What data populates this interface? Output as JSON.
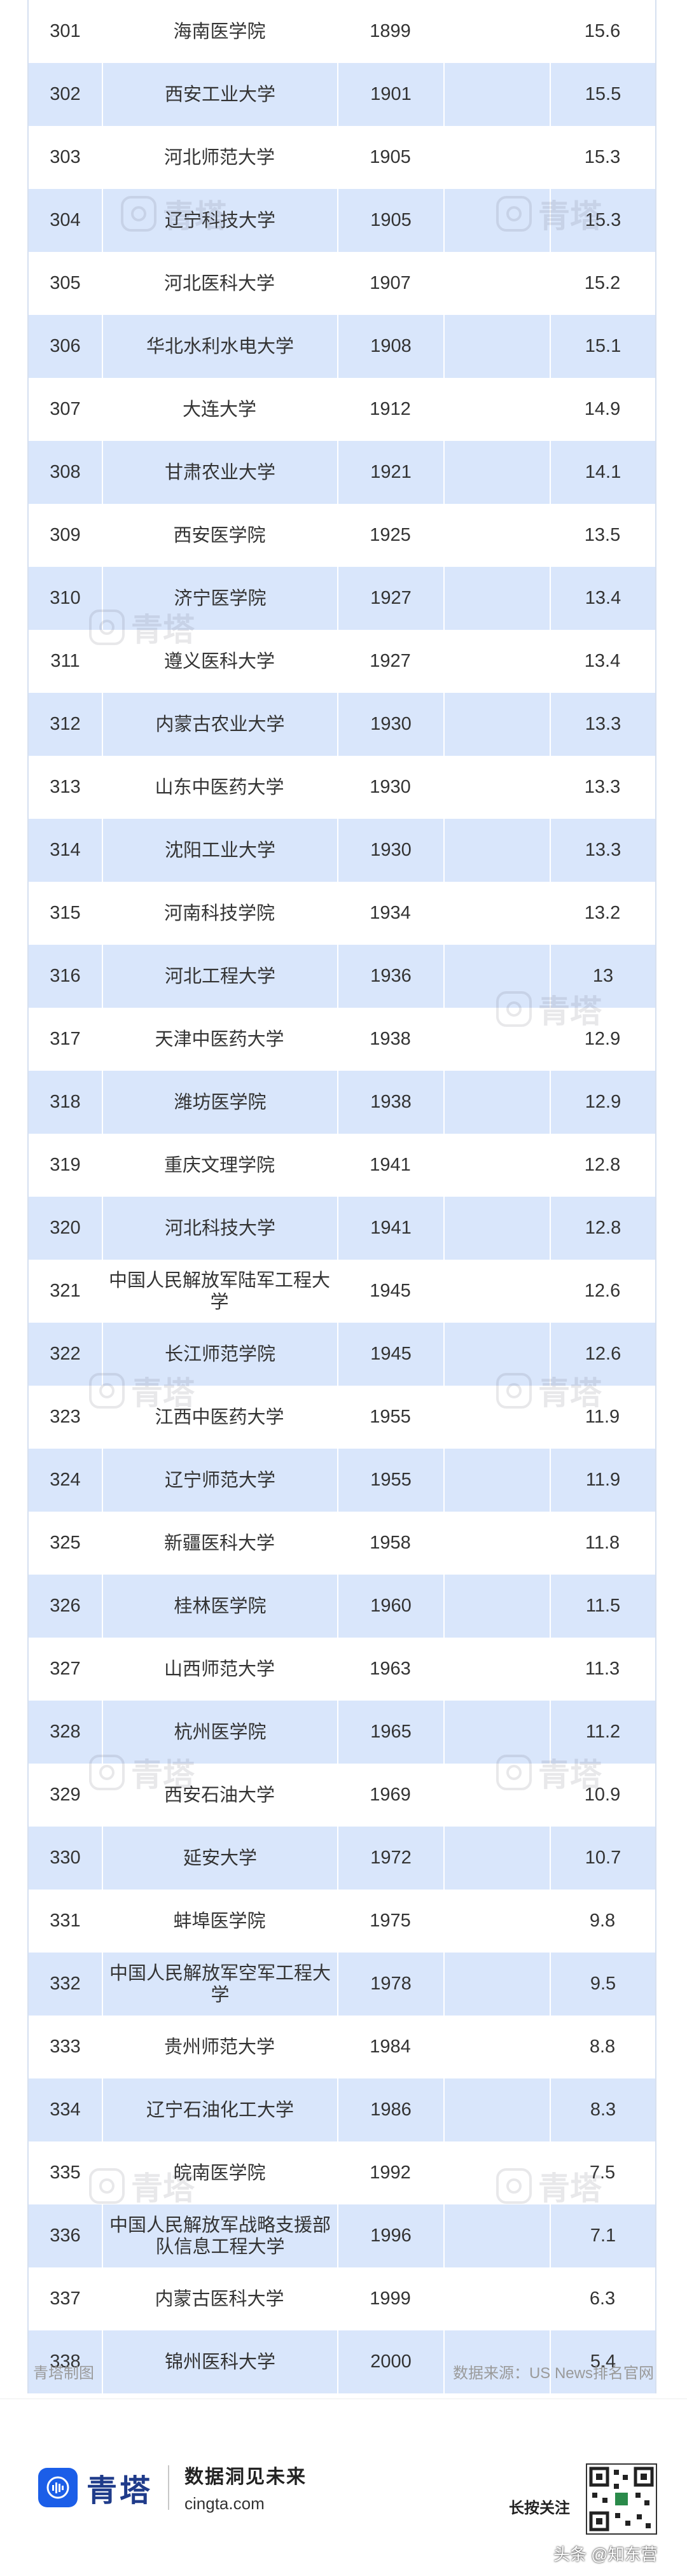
{
  "rows": [
    {
      "rank": "301",
      "name": "海南医学院",
      "year": "1899",
      "score": "15.6"
    },
    {
      "rank": "302",
      "name": "西安工业大学",
      "year": "1901",
      "score": "15.5"
    },
    {
      "rank": "303",
      "name": "河北师范大学",
      "year": "1905",
      "score": "15.3"
    },
    {
      "rank": "304",
      "name": "辽宁科技大学",
      "year": "1905",
      "score": "15.3"
    },
    {
      "rank": "305",
      "name": "河北医科大学",
      "year": "1907",
      "score": "15.2"
    },
    {
      "rank": "306",
      "name": "华北水利水电大学",
      "year": "1908",
      "score": "15.1"
    },
    {
      "rank": "307",
      "name": "大连大学",
      "year": "1912",
      "score": "14.9"
    },
    {
      "rank": "308",
      "name": "甘肃农业大学",
      "year": "1921",
      "score": "14.1"
    },
    {
      "rank": "309",
      "name": "西安医学院",
      "year": "1925",
      "score": "13.5"
    },
    {
      "rank": "310",
      "name": "济宁医学院",
      "year": "1927",
      "score": "13.4"
    },
    {
      "rank": "311",
      "name": "遵义医科大学",
      "year": "1927",
      "score": "13.4"
    },
    {
      "rank": "312",
      "name": "内蒙古农业大学",
      "year": "1930",
      "score": "13.3"
    },
    {
      "rank": "313",
      "name": "山东中医药大学",
      "year": "1930",
      "score": "13.3"
    },
    {
      "rank": "314",
      "name": "沈阳工业大学",
      "year": "1930",
      "score": "13.3"
    },
    {
      "rank": "315",
      "name": "河南科技学院",
      "year": "1934",
      "score": "13.2"
    },
    {
      "rank": "316",
      "name": "河北工程大学",
      "year": "1936",
      "score": "13"
    },
    {
      "rank": "317",
      "name": "天津中医药大学",
      "year": "1938",
      "score": "12.9"
    },
    {
      "rank": "318",
      "name": "潍坊医学院",
      "year": "1938",
      "score": "12.9"
    },
    {
      "rank": "319",
      "name": "重庆文理学院",
      "year": "1941",
      "score": "12.8"
    },
    {
      "rank": "320",
      "name": "河北科技大学",
      "year": "1941",
      "score": "12.8"
    },
    {
      "rank": "321",
      "name": "中国人民解放军陆军工程大学",
      "year": "1945",
      "score": "12.6"
    },
    {
      "rank": "322",
      "name": "长江师范学院",
      "year": "1945",
      "score": "12.6"
    },
    {
      "rank": "323",
      "name": "江西中医药大学",
      "year": "1955",
      "score": "11.9"
    },
    {
      "rank": "324",
      "name": "辽宁师范大学",
      "year": "1955",
      "score": "11.9"
    },
    {
      "rank": "325",
      "name": "新疆医科大学",
      "year": "1958",
      "score": "11.8"
    },
    {
      "rank": "326",
      "name": "桂林医学院",
      "year": "1960",
      "score": "11.5"
    },
    {
      "rank": "327",
      "name": "山西师范大学",
      "year": "1963",
      "score": "11.3"
    },
    {
      "rank": "328",
      "name": "杭州医学院",
      "year": "1965",
      "score": "11.2"
    },
    {
      "rank": "329",
      "name": "西安石油大学",
      "year": "1969",
      "score": "10.9"
    },
    {
      "rank": "330",
      "name": "延安大学",
      "year": "1972",
      "score": "10.7"
    },
    {
      "rank": "331",
      "name": "蚌埠医学院",
      "year": "1975",
      "score": "9.8"
    },
    {
      "rank": "332",
      "name": "中国人民解放军空军工程大学",
      "year": "1978",
      "score": "9.5"
    },
    {
      "rank": "333",
      "name": "贵州师范大学",
      "year": "1984",
      "score": "8.8"
    },
    {
      "rank": "334",
      "name": "辽宁石油化工大学",
      "year": "1986",
      "score": "8.3"
    },
    {
      "rank": "335",
      "name": "皖南医学院",
      "year": "1992",
      "score": "7.5"
    },
    {
      "rank": "336",
      "name": "中国人民解放军战略支援部队信息工程大学",
      "year": "1996",
      "score": "7.1"
    },
    {
      "rank": "337",
      "name": "内蒙古医科大学",
      "year": "1999",
      "score": "6.3"
    },
    {
      "rank": "338",
      "name": "锦州医科大学",
      "year": "2000",
      "score": "5.4"
    }
  ],
  "watermark_text": "青塔",
  "footnote": {
    "left": "青塔制图",
    "right": "数据来源：US News排名官网"
  },
  "brand": {
    "name": "青塔",
    "slogan": "数据洞见未来",
    "site": "cingta.com",
    "follow": "长按关注"
  },
  "credit": "头条 @知东营",
  "colors": {
    "row_alt": "#d9e6fb",
    "brand_blue": "#1b5ee8"
  }
}
